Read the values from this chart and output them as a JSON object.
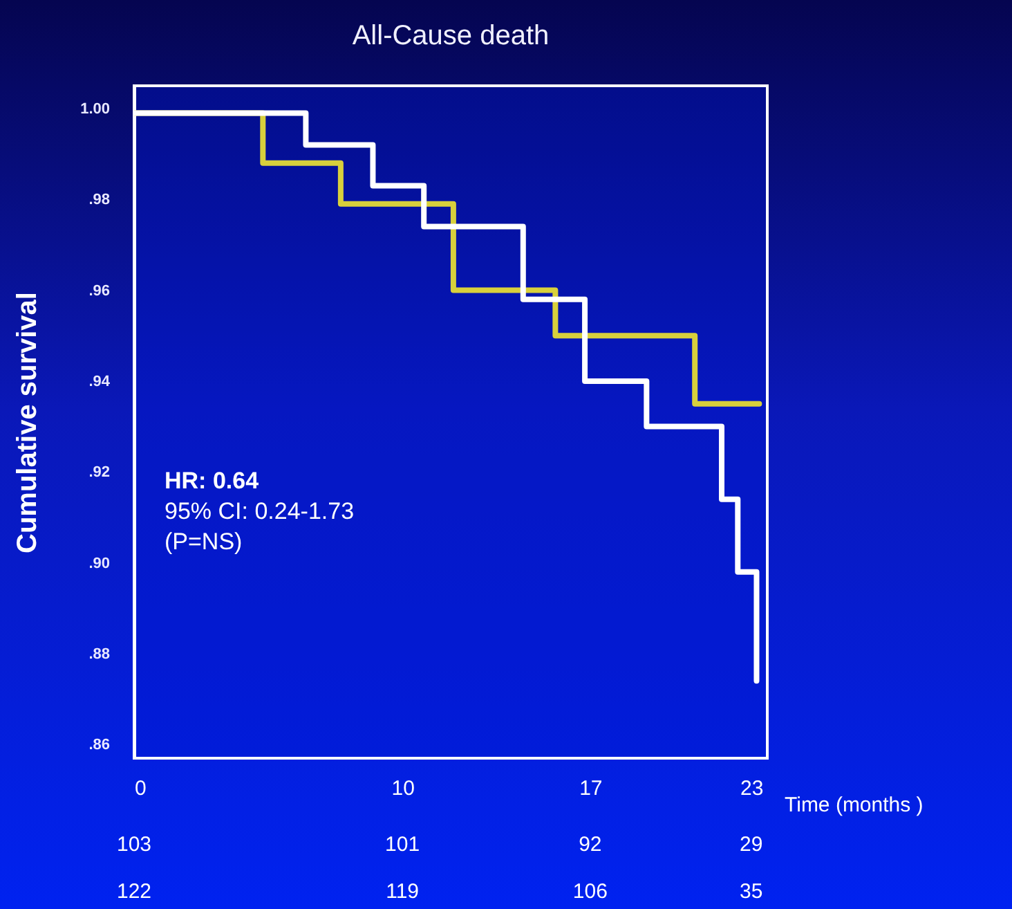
{
  "chart_data": {
    "type": "step",
    "title": "All-Cause death",
    "xlabel": "Time (months )",
    "ylabel": "Cumulative survival",
    "series": [
      {
        "color": "#d8d03c",
        "x": [
          0,
          4.8,
          7.7,
          11.9,
          15.7,
          20.9,
          23.3
        ],
        "values": [
          0.999,
          0.988,
          0.979,
          0.96,
          0.95,
          0.935,
          0.935
        ]
      },
      {
        "color": "#ffffff",
        "x": [
          0,
          6.4,
          8.9,
          10.8,
          14.5,
          16.8,
          19.1,
          21.9,
          22.5,
          23.2
        ],
        "values": [
          0.999,
          0.992,
          0.983,
          0.974,
          0.958,
          0.94,
          0.93,
          0.914,
          0.898,
          0.874
        ]
      }
    ],
    "xlim": [
      0,
      23.6
    ],
    "xticks": [
      0,
      10,
      17,
      23
    ],
    "ylim": [
      0.857,
      1.005
    ],
    "yticks": [
      {
        "value": 0.86,
        "label": ".86"
      },
      {
        "value": 0.88,
        "label": ".88"
      },
      {
        "value": 0.9,
        "label": ".90"
      },
      {
        "value": 0.92,
        "label": ".92"
      },
      {
        "value": 0.94,
        "label": ".94"
      },
      {
        "value": 0.96,
        "label": ".96"
      },
      {
        "value": 0.98,
        "label": ".98"
      },
      {
        "value": 1,
        "label": "1.00"
      }
    ],
    "grid": false,
    "line_style": "solid",
    "marker": "none",
    "annotations": [
      "HR: 0.64",
      "95% CI: 0.24-1.73",
      "(P=NS)",
      "103",
      "101",
      "92",
      "29",
      "122",
      "119",
      "106",
      "35"
    ]
  }
}
